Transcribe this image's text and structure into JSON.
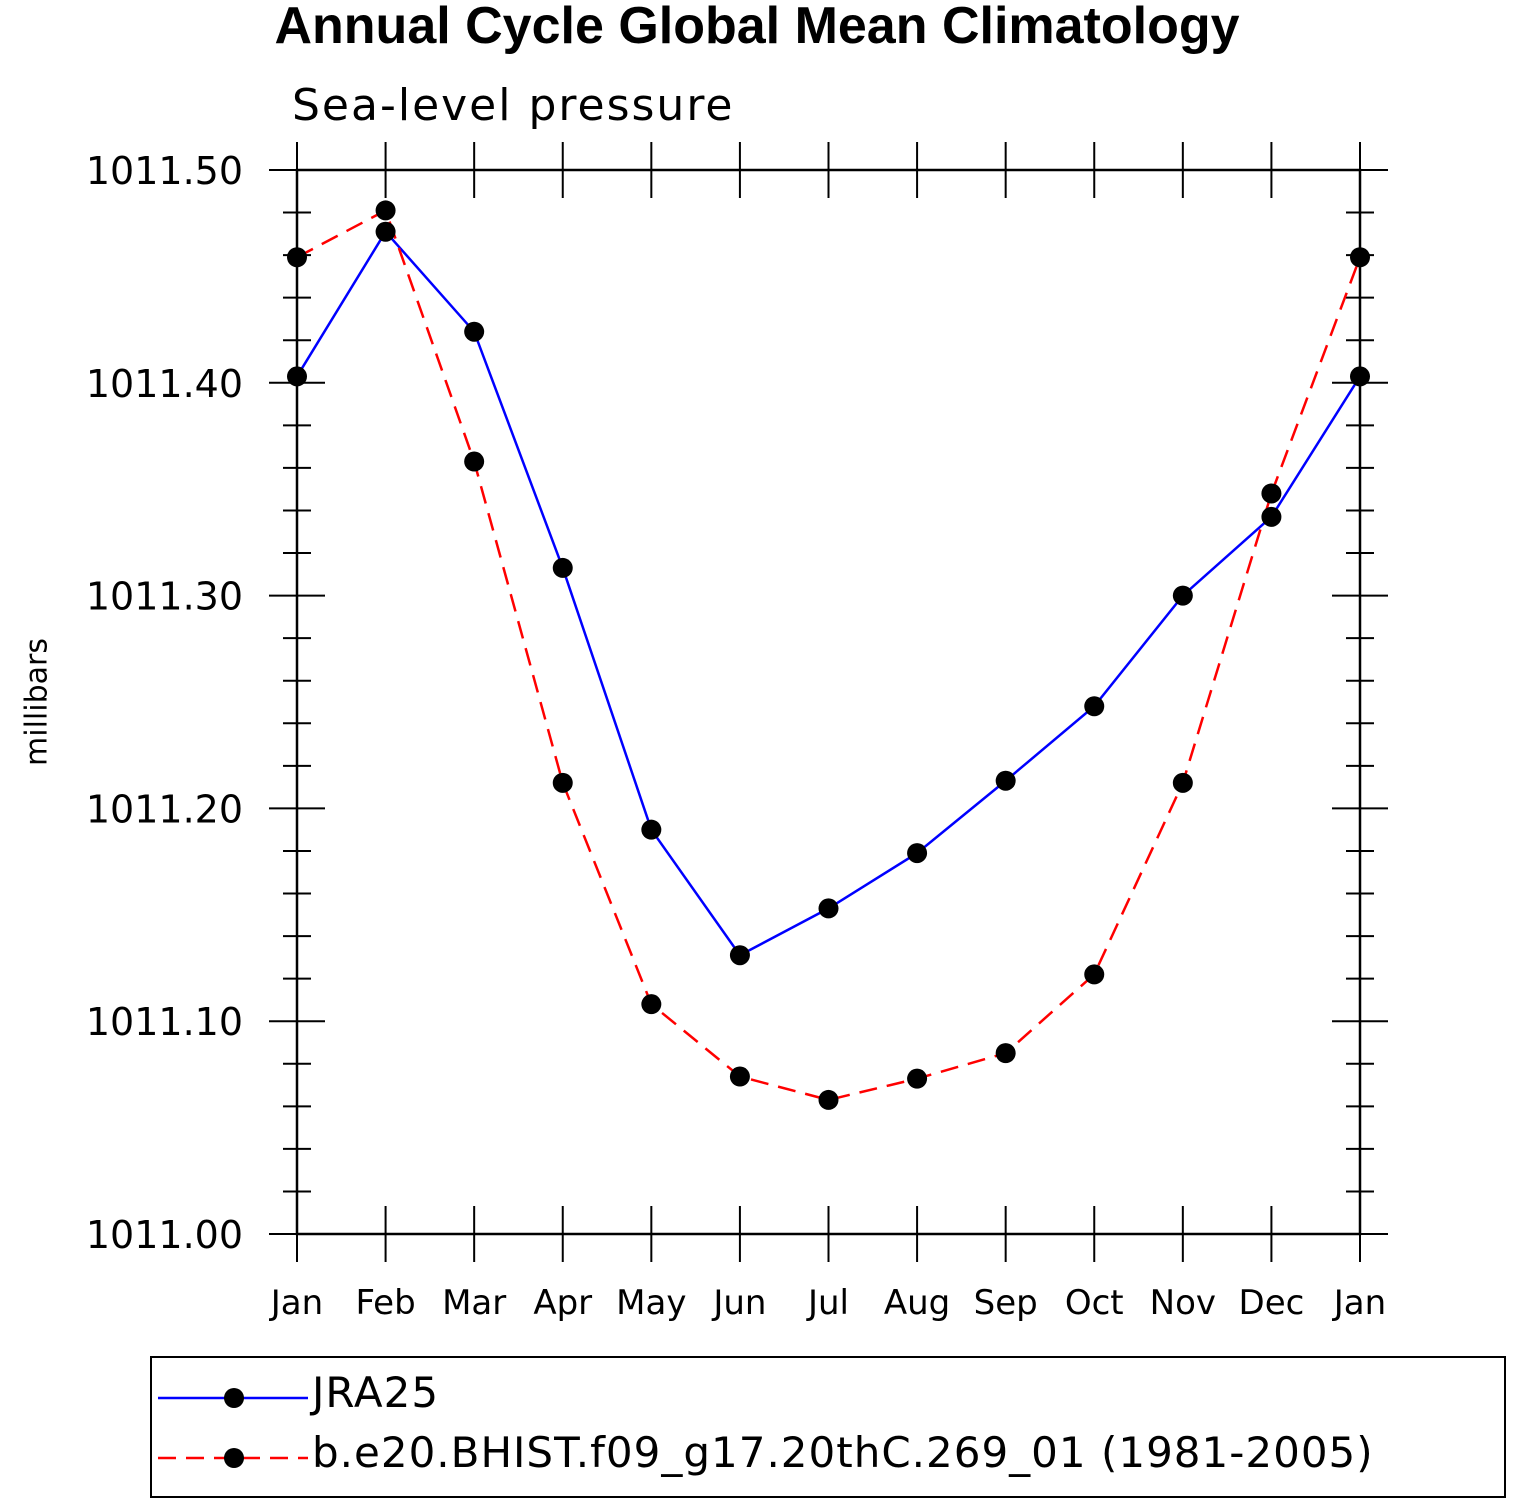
{
  "chart_data": {
    "type": "line",
    "title": "Annual Cycle Global Mean Climatology",
    "subtitle": "Sea-level pressure",
    "ylabel": "millibars",
    "xlabel": "",
    "categories": [
      "Jan",
      "Feb",
      "Mar",
      "Apr",
      "May",
      "Jun",
      "Jul",
      "Aug",
      "Sep",
      "Oct",
      "Nov",
      "Dec",
      "Jan"
    ],
    "ylim": [
      1011.0,
      1011.5
    ],
    "yticks": [
      "1011.00",
      "1011.10",
      "1011.20",
      "1011.30",
      "1011.40",
      "1011.50"
    ],
    "series": [
      {
        "name": "JRA25",
        "color": "#0000ff",
        "linestyle": "solid",
        "values": [
          1011.403,
          1011.471,
          1011.424,
          1011.313,
          1011.19,
          1011.131,
          1011.153,
          1011.179,
          1011.213,
          1011.248,
          1011.3,
          1011.337,
          1011.403
        ]
      },
      {
        "name": "b.e20.BHIST.f09_g17.20thC.269_01 (1981-2005)",
        "color": "#ff0000",
        "linestyle": "dashed",
        "values": [
          1011.459,
          1011.481,
          1011.363,
          1011.212,
          1011.108,
          1011.074,
          1011.063,
          1011.073,
          1011.085,
          1011.122,
          1011.212,
          1011.348,
          1011.459
        ]
      }
    ],
    "grid": false,
    "legend_position": "bottom"
  }
}
